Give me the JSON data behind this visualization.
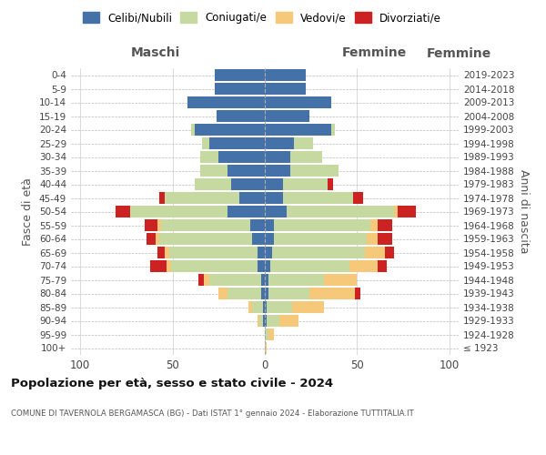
{
  "age_groups": [
    "100+",
    "95-99",
    "90-94",
    "85-89",
    "80-84",
    "75-79",
    "70-74",
    "65-69",
    "60-64",
    "55-59",
    "50-54",
    "45-49",
    "40-44",
    "35-39",
    "30-34",
    "25-29",
    "20-24",
    "15-19",
    "10-14",
    "5-9",
    "0-4"
  ],
  "birth_years": [
    "≤ 1923",
    "1924-1928",
    "1929-1933",
    "1934-1938",
    "1939-1943",
    "1944-1948",
    "1949-1953",
    "1954-1958",
    "1959-1963",
    "1964-1968",
    "1969-1973",
    "1974-1978",
    "1979-1983",
    "1984-1988",
    "1989-1993",
    "1994-1998",
    "1999-2003",
    "2004-2008",
    "2009-2013",
    "2014-2018",
    "2019-2023"
  ],
  "colors": {
    "celibi": "#4472a8",
    "coniugati": "#c5d9a0",
    "vedovi": "#f5c87a",
    "divorziati": "#cc2222"
  },
  "maschi": {
    "celibi": [
      0,
      0,
      1,
      1,
      2,
      2,
      4,
      4,
      7,
      8,
      20,
      14,
      18,
      20,
      25,
      30,
      38,
      26,
      42,
      27,
      27
    ],
    "coniugati": [
      0,
      0,
      2,
      6,
      18,
      28,
      47,
      48,
      50,
      48,
      53,
      40,
      20,
      15,
      10,
      4,
      2,
      0,
      0,
      0,
      0
    ],
    "vedovi": [
      0,
      0,
      1,
      2,
      5,
      3,
      2,
      2,
      2,
      2,
      0,
      0,
      0,
      0,
      0,
      0,
      0,
      0,
      0,
      0,
      0
    ],
    "divorziati": [
      0,
      0,
      0,
      0,
      0,
      3,
      9,
      4,
      5,
      7,
      8,
      3,
      0,
      0,
      0,
      0,
      0,
      0,
      0,
      0,
      0
    ]
  },
  "femmine": {
    "celibi": [
      0,
      0,
      1,
      1,
      2,
      2,
      3,
      4,
      5,
      5,
      12,
      10,
      10,
      14,
      14,
      16,
      36,
      24,
      36,
      22,
      22
    ],
    "coniugati": [
      0,
      2,
      7,
      14,
      22,
      30,
      43,
      50,
      50,
      52,
      58,
      38,
      24,
      26,
      17,
      10,
      2,
      0,
      0,
      0,
      0
    ],
    "vedovi": [
      1,
      3,
      10,
      17,
      25,
      18,
      15,
      11,
      6,
      4,
      2,
      0,
      0,
      0,
      0,
      0,
      0,
      0,
      0,
      0,
      0
    ],
    "divorziati": [
      0,
      0,
      0,
      0,
      3,
      0,
      5,
      5,
      8,
      8,
      10,
      5,
      3,
      0,
      0,
      0,
      0,
      0,
      0,
      0,
      0
    ]
  },
  "title": "Popolazione per età, sesso e stato civile - 2024",
  "subtitle": "COMUNE DI TAVERNOLA BERGAMASCA (BG) - Dati ISTAT 1° gennaio 2024 - Elaborazione TUTTITALIA.IT",
  "xlabel_left": "Maschi",
  "xlabel_right": "Femmine",
  "ylabel_left": "Fasce di età",
  "ylabel_right": "Anni di nascita",
  "xlim": 105,
  "xticks": [
    -100,
    -50,
    0,
    50,
    100
  ],
  "legend_labels": [
    "Celibi/Nubili",
    "Coniugati/e",
    "Vedovi/e",
    "Divorziati/e"
  ]
}
